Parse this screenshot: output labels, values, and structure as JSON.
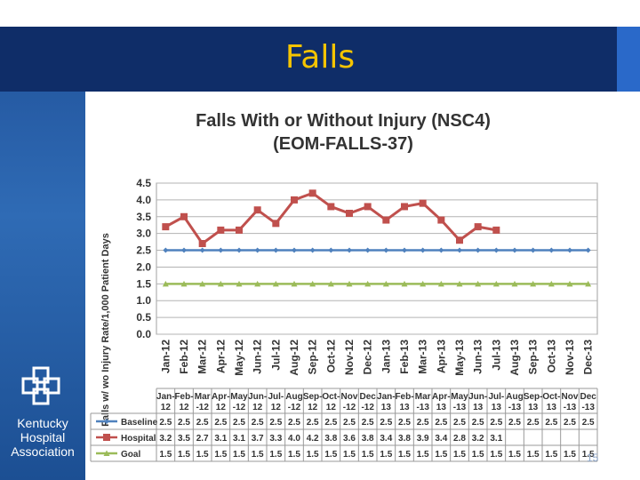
{
  "slide": {
    "title": "Falls",
    "page_number": "15"
  },
  "logo": {
    "lines": [
      "Kentucky",
      "Hospital",
      "Association"
    ]
  },
  "colors": {
    "header_band": "#0f2d68",
    "title_text": "#f5c400",
    "baseline": "#4f81bd",
    "hospital": "#c0504d",
    "goal": "#9bbb59"
  },
  "chart_data": {
    "type": "line",
    "title": "Falls With or Without Injury (NSC4)",
    "subtitle": "(EOM-FALLS-37)",
    "ylabel": "Falls w/ wo Injury Rate/1,000 Patient Days",
    "ylim": [
      0,
      4.5
    ],
    "yticks": [
      "0.0",
      "0.5",
      "1.0",
      "1.5",
      "2.0",
      "2.5",
      "3.0",
      "3.5",
      "4.0",
      "4.5"
    ],
    "grid": true,
    "categories": [
      "Jan-12",
      "Feb-12",
      "Mar-12",
      "Apr-12",
      "May-12",
      "Jun-12",
      "Jul-12",
      "Aug-12",
      "Sep-12",
      "Oct-12",
      "Nov-12",
      "Dec-12",
      "Jan-13",
      "Feb-13",
      "Mar-13",
      "Apr-13",
      "May-13",
      "Jun-13",
      "Jul-13",
      "Aug-13",
      "Sep-13",
      "Oct-13",
      "Nov-13",
      "Dec-13"
    ],
    "table_headers": [
      [
        "Jan-",
        "12"
      ],
      [
        "Feb-",
        "12"
      ],
      [
        "Mar",
        "-12"
      ],
      [
        "Apr-",
        "12"
      ],
      [
        "May",
        "-12"
      ],
      [
        "Jun-",
        "12"
      ],
      [
        "Jul-",
        "12"
      ],
      [
        "Aug",
        "-12"
      ],
      [
        "Sep-",
        "12"
      ],
      [
        "Oct-",
        "12"
      ],
      [
        "Nov",
        "-12"
      ],
      [
        "Dec",
        "-12"
      ],
      [
        "Jan-",
        "13"
      ],
      [
        "Feb-",
        "13"
      ],
      [
        "Mar",
        "-13"
      ],
      [
        "Apr-",
        "13"
      ],
      [
        "May",
        "-13"
      ],
      [
        "Jun-",
        "13"
      ],
      [
        "Jul-",
        "13"
      ],
      [
        "Aug",
        "-13"
      ],
      [
        "Sep-",
        "13"
      ],
      [
        "Oct-",
        "13"
      ],
      [
        "Nov",
        "-13"
      ],
      [
        "Dec",
        "-13"
      ]
    ],
    "series": [
      {
        "name": "Baseline",
        "values": [
          "2.5",
          "2.5",
          "2.5",
          "2.5",
          "2.5",
          "2.5",
          "2.5",
          "2.5",
          "2.5",
          "2.5",
          "2.5",
          "2.5",
          "2.5",
          "2.5",
          "2.5",
          "2.5",
          "2.5",
          "2.5",
          "2.5",
          "2.5",
          "2.5",
          "2.5",
          "2.5",
          "2.5"
        ]
      },
      {
        "name": "Hospital",
        "values": [
          "3.2",
          "3.5",
          "2.7",
          "3.1",
          "3.1",
          "3.7",
          "3.3",
          "4.0",
          "4.2",
          "3.8",
          "3.6",
          "3.8",
          "3.4",
          "3.8",
          "3.9",
          "3.4",
          "2.8",
          "3.2",
          "3.1",
          "",
          "",
          "",
          "",
          ""
        ]
      },
      {
        "name": "Goal",
        "values": [
          "1.5",
          "1.5",
          "1.5",
          "1.5",
          "1.5",
          "1.5",
          "1.5",
          "1.5",
          "1.5",
          "1.5",
          "1.5",
          "1.5",
          "1.5",
          "1.5",
          "1.5",
          "1.5",
          "1.5",
          "1.5",
          "1.5",
          "1.5",
          "1.5",
          "1.5",
          "1.5",
          "1.5"
        ]
      }
    ]
  }
}
